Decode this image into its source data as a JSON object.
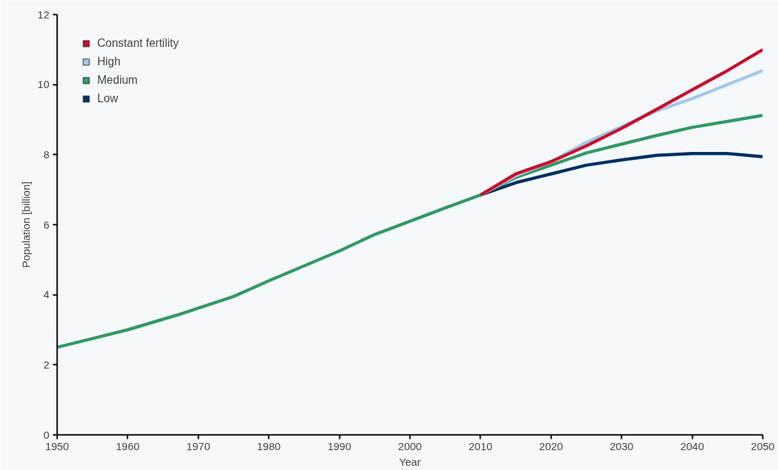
{
  "chart_data": {
    "type": "line",
    "xlabel": "Year",
    "ylabel": "Population [billion]",
    "xlim": [
      1950,
      2050
    ],
    "xticks": [
      1950,
      1960,
      1970,
      1980,
      1990,
      2000,
      2010,
      2020,
      2030,
      2040,
      2050
    ],
    "ylim": [
      0,
      12
    ],
    "yticks": [
      0,
      2,
      4,
      6,
      8,
      10,
      12
    ],
    "grid": false,
    "legend": "top left",
    "series": [
      {
        "name": "Constant fertility",
        "color": "#c8102e",
        "x": [
          2010,
          2015,
          2020,
          2025,
          2030,
          2035,
          2040,
          2045,
          2050
        ],
        "values": [
          6.85,
          7.45,
          7.8,
          8.25,
          8.75,
          9.3,
          9.85,
          10.4,
          11.0
        ]
      },
      {
        "name": "High",
        "color": "#a4c8e8",
        "x": [
          2010,
          2015,
          2020,
          2025,
          2030,
          2035,
          2040,
          2045,
          2050
        ],
        "values": [
          6.85,
          7.4,
          7.8,
          8.35,
          8.8,
          9.25,
          9.6,
          10.0,
          10.4
        ]
      },
      {
        "name": "Medium",
        "color": "#339966",
        "x": [
          1950,
          1955,
          1960,
          1967,
          1975,
          1980,
          1990,
          1995,
          2000,
          2005,
          2010,
          2015,
          2020,
          2025,
          2030,
          2035,
          2040,
          2045,
          2050
        ],
        "values": [
          2.5,
          2.75,
          3.0,
          3.42,
          3.95,
          4.4,
          5.25,
          5.72,
          6.1,
          6.48,
          6.85,
          7.35,
          7.7,
          8.05,
          8.3,
          8.55,
          8.78,
          8.95,
          9.12
        ]
      },
      {
        "name": "Low",
        "color": "#00305f",
        "x": [
          2010,
          2015,
          2020,
          2025,
          2030,
          2035,
          2040,
          2045,
          2050
        ],
        "values": [
          6.85,
          7.2,
          7.45,
          7.7,
          7.85,
          7.98,
          8.03,
          8.03,
          7.94
        ]
      }
    ]
  }
}
